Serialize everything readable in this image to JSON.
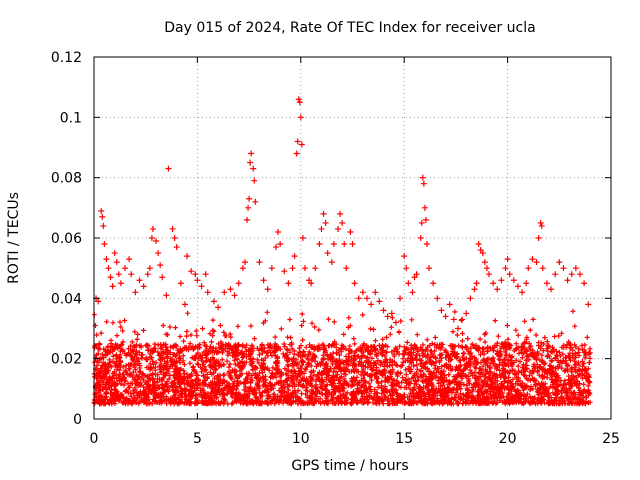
{
  "chart_data": {
    "type": "scatter",
    "title": "Day 015 of 2024, Rate Of TEC Index for receiver ucla",
    "xlabel": "GPS time / hours",
    "ylabel": "ROTI / TECUs",
    "xlim": [
      0,
      25
    ],
    "ylim": [
      0,
      0.12
    ],
    "x_ticks": [
      "0",
      "5",
      "10",
      "15",
      "20",
      "25"
    ],
    "y_ticks": [
      "0",
      "0.02",
      "0.04",
      "0.06",
      "0.08",
      "0.1",
      "0.12"
    ],
    "grid": true,
    "marker": "+",
    "series_color": "#ff0000",
    "background_band": {
      "x_start": 0,
      "x_end": 24,
      "y_low": 0.005,
      "y_high": 0.025
    },
    "series": [
      {
        "points": [
          [
            0.1,
            0.04
          ],
          [
            0.2,
            0.039
          ],
          [
            0.35,
            0.069
          ],
          [
            0.4,
            0.067
          ],
          [
            0.45,
            0.064
          ],
          [
            0.5,
            0.058
          ],
          [
            0.6,
            0.053
          ],
          [
            0.7,
            0.05
          ],
          [
            0.8,
            0.047
          ],
          [
            0.9,
            0.044
          ],
          [
            1.0,
            0.055
          ],
          [
            1.1,
            0.052
          ],
          [
            1.2,
            0.048
          ],
          [
            1.3,
            0.045
          ],
          [
            1.5,
            0.05
          ],
          [
            1.7,
            0.053
          ],
          [
            1.8,
            0.048
          ],
          [
            2.0,
            0.042
          ],
          [
            2.2,
            0.046
          ],
          [
            2.4,
            0.044
          ],
          [
            2.6,
            0.048
          ],
          [
            2.7,
            0.05
          ],
          [
            2.8,
            0.06
          ],
          [
            2.85,
            0.063
          ],
          [
            3.0,
            0.059
          ],
          [
            3.1,
            0.055
          ],
          [
            3.2,
            0.051
          ],
          [
            3.3,
            0.047
          ],
          [
            3.5,
            0.041
          ],
          [
            3.6,
            0.083
          ],
          [
            3.8,
            0.063
          ],
          [
            3.9,
            0.06
          ],
          [
            4.0,
            0.057
          ],
          [
            4.2,
            0.045
          ],
          [
            4.4,
            0.038
          ],
          [
            4.5,
            0.054
          ],
          [
            4.7,
            0.049
          ],
          [
            4.9,
            0.048
          ],
          [
            5.0,
            0.046
          ],
          [
            5.2,
            0.044
          ],
          [
            5.4,
            0.048
          ],
          [
            5.5,
            0.042
          ],
          [
            5.8,
            0.039
          ],
          [
            6.0,
            0.037
          ],
          [
            6.3,
            0.042
          ],
          [
            6.6,
            0.043
          ],
          [
            6.8,
            0.041
          ],
          [
            7.0,
            0.045
          ],
          [
            7.2,
            0.05
          ],
          [
            7.3,
            0.052
          ],
          [
            7.4,
            0.066
          ],
          [
            7.45,
            0.07
          ],
          [
            7.5,
            0.073
          ],
          [
            7.55,
            0.085
          ],
          [
            7.6,
            0.088
          ],
          [
            7.7,
            0.083
          ],
          [
            7.75,
            0.079
          ],
          [
            7.8,
            0.072
          ],
          [
            8.0,
            0.052
          ],
          [
            8.2,
            0.046
          ],
          [
            8.4,
            0.043
          ],
          [
            8.6,
            0.05
          ],
          [
            8.8,
            0.057
          ],
          [
            8.9,
            0.062
          ],
          [
            9.0,
            0.058
          ],
          [
            9.2,
            0.049
          ],
          [
            9.4,
            0.045
          ],
          [
            9.6,
            0.05
          ],
          [
            9.7,
            0.054
          ],
          [
            9.8,
            0.088
          ],
          [
            9.85,
            0.092
          ],
          [
            9.9,
            0.106
          ],
          [
            9.95,
            0.105
          ],
          [
            10.0,
            0.1
          ],
          [
            10.05,
            0.091
          ],
          [
            10.1,
            0.06
          ],
          [
            10.2,
            0.05
          ],
          [
            10.4,
            0.046
          ],
          [
            10.5,
            0.045
          ],
          [
            10.7,
            0.05
          ],
          [
            10.9,
            0.058
          ],
          [
            11.0,
            0.063
          ],
          [
            11.1,
            0.068
          ],
          [
            11.2,
            0.065
          ],
          [
            11.3,
            0.055
          ],
          [
            11.5,
            0.052
          ],
          [
            11.6,
            0.058
          ],
          [
            11.8,
            0.063
          ],
          [
            11.9,
            0.068
          ],
          [
            12.0,
            0.065
          ],
          [
            12.1,
            0.058
          ],
          [
            12.2,
            0.05
          ],
          [
            12.4,
            0.062
          ],
          [
            12.5,
            0.058
          ],
          [
            12.6,
            0.045
          ],
          [
            12.8,
            0.04
          ],
          [
            13.0,
            0.042
          ],
          [
            13.2,
            0.04
          ],
          [
            13.4,
            0.038
          ],
          [
            13.6,
            0.042
          ],
          [
            13.8,
            0.039
          ],
          [
            14.0,
            0.036
          ],
          [
            14.2,
            0.034
          ],
          [
            14.4,
            0.035
          ],
          [
            14.6,
            0.032
          ],
          [
            14.8,
            0.04
          ],
          [
            15.0,
            0.054
          ],
          [
            15.1,
            0.05
          ],
          [
            15.2,
            0.045
          ],
          [
            15.4,
            0.042
          ],
          [
            15.5,
            0.047
          ],
          [
            15.6,
            0.048
          ],
          [
            15.8,
            0.06
          ],
          [
            15.85,
            0.065
          ],
          [
            15.9,
            0.08
          ],
          [
            15.95,
            0.078
          ],
          [
            16.0,
            0.07
          ],
          [
            16.05,
            0.066
          ],
          [
            16.1,
            0.058
          ],
          [
            16.2,
            0.05
          ],
          [
            16.4,
            0.045
          ],
          [
            16.6,
            0.04
          ],
          [
            16.8,
            0.036
          ],
          [
            17.0,
            0.034
          ],
          [
            17.2,
            0.038
          ],
          [
            17.4,
            0.033
          ],
          [
            17.6,
            0.03
          ],
          [
            17.8,
            0.033
          ],
          [
            18.0,
            0.035
          ],
          [
            18.2,
            0.04
          ],
          [
            18.4,
            0.043
          ],
          [
            18.5,
            0.045
          ],
          [
            18.6,
            0.058
          ],
          [
            18.7,
            0.056
          ],
          [
            18.8,
            0.055
          ],
          [
            18.9,
            0.052
          ],
          [
            19.0,
            0.05
          ],
          [
            19.1,
            0.048
          ],
          [
            19.3,
            0.045
          ],
          [
            19.5,
            0.043
          ],
          [
            19.7,
            0.046
          ],
          [
            19.9,
            0.05
          ],
          [
            20.0,
            0.053
          ],
          [
            20.1,
            0.048
          ],
          [
            20.3,
            0.046
          ],
          [
            20.5,
            0.044
          ],
          [
            20.7,
            0.042
          ],
          [
            20.9,
            0.045
          ],
          [
            21.0,
            0.05
          ],
          [
            21.2,
            0.053
          ],
          [
            21.4,
            0.052
          ],
          [
            21.5,
            0.06
          ],
          [
            21.6,
            0.065
          ],
          [
            21.65,
            0.064
          ],
          [
            21.7,
            0.05
          ],
          [
            21.9,
            0.045
          ],
          [
            22.1,
            0.043
          ],
          [
            22.3,
            0.048
          ],
          [
            22.5,
            0.052
          ],
          [
            22.7,
            0.05
          ],
          [
            22.9,
            0.046
          ],
          [
            23.1,
            0.048
          ],
          [
            23.3,
            0.05
          ],
          [
            23.5,
            0.048
          ],
          [
            23.7,
            0.045
          ],
          [
            23.9,
            0.038
          ]
        ]
      }
    ]
  }
}
